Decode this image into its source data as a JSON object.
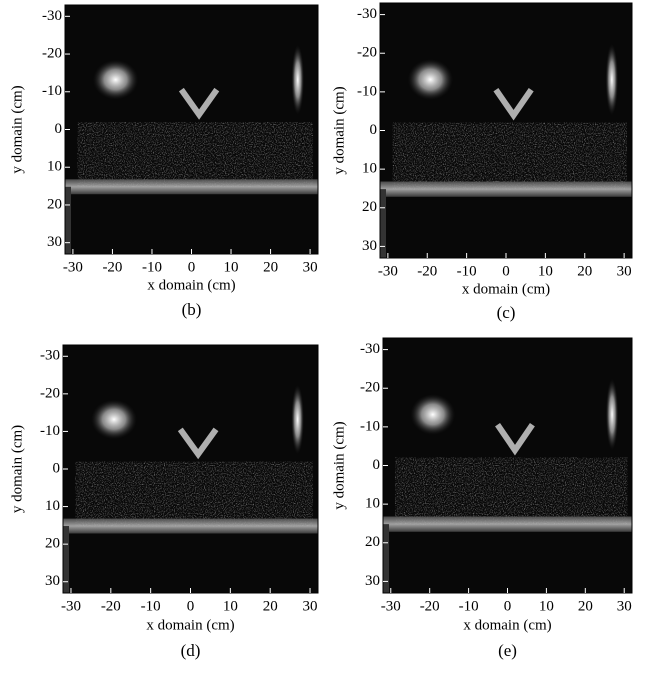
{
  "panels": [
    {
      "label": "(b)",
      "x_label": "x domain (cm)",
      "y_label": "y domain (cm)",
      "xlim": [
        -32,
        32
      ],
      "ylim": [
        -33,
        33
      ],
      "xticks": [
        -30,
        -20,
        -10,
        0,
        10,
        20,
        30
      ],
      "yticks": [
        -30,
        -20,
        -10,
        0,
        10,
        20,
        30
      ]
    },
    {
      "label": "(c)",
      "x_label": "x domain (cm)",
      "y_label": "y domain (cm)",
      "xlim": [
        -32,
        32
      ],
      "ylim": [
        -33,
        33
      ],
      "xticks": [
        -30,
        -20,
        -10,
        0,
        10,
        20,
        30
      ],
      "yticks": [
        -30,
        -20,
        -10,
        0,
        10,
        20,
        30
      ]
    },
    {
      "label": "(d)",
      "x_label": "x domain (cm)",
      "y_label": "y domain (cm)",
      "xlim": [
        -32,
        32
      ],
      "ylim": [
        -33,
        33
      ],
      "xticks": [
        -30,
        -20,
        -10,
        0,
        10,
        20,
        30
      ],
      "yticks": [
        -30,
        -20,
        -10,
        0,
        10,
        20,
        30
      ]
    },
    {
      "label": "(e)",
      "x_label": "x domain (cm)",
      "y_label": "y domain (cm)",
      "xlim": [
        -32,
        32
      ],
      "ylim": [
        -33,
        33
      ],
      "xticks": [
        -30,
        -20,
        -10,
        0,
        10,
        20,
        30
      ],
      "yticks": [
        -30,
        -20,
        -10,
        0,
        10,
        20,
        30
      ]
    }
  ]
}
